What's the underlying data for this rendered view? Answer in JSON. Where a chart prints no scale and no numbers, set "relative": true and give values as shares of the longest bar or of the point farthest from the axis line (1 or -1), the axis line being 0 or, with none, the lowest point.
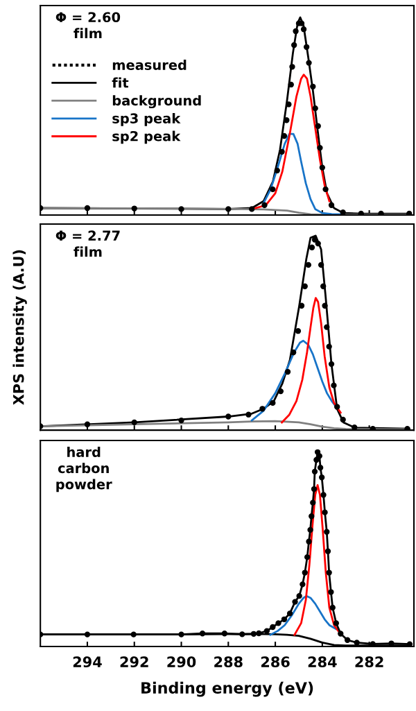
{
  "chart_data": [
    {
      "type": "line",
      "relative": true,
      "xlim": [
        296,
        280.1
      ],
      "xticks": [
        294,
        292,
        290,
        288,
        286,
        284,
        282
      ],
      "tick_labels": false,
      "legend": "top left",
      "annotations": [
        "Φ = 2.60\nfilm"
      ],
      "series": [
        {
          "name": "measured",
          "type": "scatter",
          "color": "#000000",
          "marker": "circle",
          "x": [
            296,
            294,
            292,
            290,
            288,
            287,
            286.46,
            286.11,
            285.92,
            285.72,
            285.62,
            285.52,
            285.43,
            285.33,
            285.28,
            285.2,
            285.13,
            285.0,
            284.88,
            284.79,
            284.67,
            284.57,
            284.4,
            284.3,
            284.18,
            284.1,
            284.0,
            283.86,
            283.61,
            283.12,
            282.35,
            281.5,
            280.3
          ],
          "values": [
            0.035,
            0.035,
            0.033,
            0.03,
            0.03,
            0.03,
            0.05,
            0.13,
            0.225,
            0.32,
            0.4,
            0.48,
            0.56,
            0.66,
            0.75,
            0.86,
            0.93,
            0.97,
            0.97,
            0.94,
            0.85,
            0.77,
            0.65,
            0.54,
            0.45,
            0.34,
            0.24,
            0.13,
            0.05,
            0.013,
            0.007,
            0.007,
            0.007
          ]
        },
        {
          "name": "fit",
          "color": "#000000",
          "marker": "none",
          "line_style": "solid",
          "x": [
            296,
            292,
            288,
            287,
            286.5,
            286.1,
            285.8,
            285.5,
            285.25,
            285.05,
            284.94,
            284.8,
            284.6,
            284.4,
            284.2,
            284.0,
            283.8,
            283.5,
            283.1,
            282.3,
            280.3
          ],
          "values": [
            0.035,
            0.033,
            0.03,
            0.035,
            0.07,
            0.17,
            0.33,
            0.58,
            0.82,
            0.97,
            1.0,
            0.96,
            0.8,
            0.63,
            0.43,
            0.24,
            0.11,
            0.035,
            0.01,
            0.006,
            0.006
          ]
        },
        {
          "name": "background",
          "color": "#808080",
          "marker": "none",
          "line_style": "solid",
          "x": [
            296,
            290,
            287.5,
            286.5,
            285.5,
            285.0,
            284.5,
            284.0,
            282,
            280.3
          ],
          "values": [
            0.035,
            0.033,
            0.03,
            0.028,
            0.022,
            0.012,
            0.004,
            0.002,
            0.002,
            0.002
          ]
        },
        {
          "name": "sp3 peak",
          "color": "#1874c8",
          "marker": "none",
          "line_style": "solid",
          "x": [
            286.5,
            286.2,
            285.9,
            285.6,
            285.4,
            285.23,
            285.05,
            284.9,
            284.7,
            284.5,
            284.3,
            284.0,
            283.6,
            283.2
          ],
          "values": [
            0.06,
            0.13,
            0.24,
            0.36,
            0.41,
            0.41,
            0.36,
            0.27,
            0.16,
            0.08,
            0.03,
            0.01,
            0.005,
            0.004
          ]
        },
        {
          "name": "sp2 peak",
          "color": "#ff0000",
          "marker": "none",
          "line_style": "solid",
          "x": [
            286.84,
            286.4,
            286.0,
            285.7,
            285.4,
            285.1,
            284.9,
            284.79,
            284.65,
            284.5,
            284.3,
            284.1,
            283.9,
            283.7
          ],
          "values": [
            0.035,
            0.05,
            0.11,
            0.22,
            0.4,
            0.6,
            0.69,
            0.71,
            0.69,
            0.6,
            0.44,
            0.28,
            0.15,
            0.07
          ]
        }
      ]
    },
    {
      "type": "line",
      "relative": true,
      "xlim": [
        296,
        280.1
      ],
      "xticks": [
        294,
        292,
        290,
        288,
        286,
        284,
        282
      ],
      "tick_labels": false,
      "ylabel": "XPS intensity (A.U)",
      "annotations": [
        "Φ = 2.77\nfilm"
      ],
      "series": [
        {
          "type": "scatter",
          "color": "#000000",
          "marker": "circle",
          "x": [
            296,
            294,
            292,
            290,
            288,
            287.14,
            286.55,
            286.11,
            285.77,
            285.47,
            285.23,
            285.03,
            284.88,
            284.74,
            284.59,
            284.44,
            284.32,
            284.18,
            284.05,
            283.96,
            283.89,
            283.81,
            283.71,
            283.61,
            283.51,
            283.37,
            283.12,
            282.63,
            281.85,
            280.38
          ],
          "values": [
            0.02,
            0.03,
            0.04,
            0.05,
            0.07,
            0.08,
            0.11,
            0.14,
            0.2,
            0.3,
            0.4,
            0.51,
            0.64,
            0.74,
            0.85,
            0.94,
            0.98,
            0.96,
            0.85,
            0.74,
            0.64,
            0.53,
            0.43,
            0.34,
            0.23,
            0.12,
            0.054,
            0.014,
            0.007,
            0.007
          ]
        },
        {
          "color": "#000000",
          "marker": "none",
          "line_style": "solid",
          "x": [
            296,
            292,
            288,
            287.0,
            286.5,
            286.06,
            285.7,
            285.38,
            284.98,
            284.68,
            284.5,
            284.28,
            284.05,
            283.86,
            283.61,
            283.37,
            283.1,
            282.6,
            280.3
          ],
          "values": [
            0.02,
            0.04,
            0.07,
            0.085,
            0.11,
            0.15,
            0.24,
            0.36,
            0.64,
            0.88,
            0.99,
            1.0,
            0.93,
            0.69,
            0.34,
            0.11,
            0.04,
            0.012,
            0.007
          ]
        },
        {
          "color": "#808080",
          "marker": "none",
          "line_style": "solid",
          "x": [
            296,
            292,
            288,
            287,
            286,
            285,
            284.5,
            284,
            283.5,
            283,
            281,
            280.3
          ],
          "values": [
            0.02,
            0.03,
            0.04,
            0.045,
            0.046,
            0.04,
            0.03,
            0.018,
            0.01,
            0.006,
            0.004,
            0.004
          ]
        },
        {
          "color": "#1874c8",
          "marker": "none",
          "line_style": "solid",
          "x": [
            287.0,
            286.5,
            286.0,
            285.6,
            285.2,
            284.95,
            284.81,
            284.6,
            284.4,
            284.2,
            284.0,
            283.8,
            283.6,
            283.41
          ],
          "values": [
            0.05,
            0.1,
            0.19,
            0.29,
            0.4,
            0.45,
            0.46,
            0.44,
            0.39,
            0.32,
            0.25,
            0.19,
            0.15,
            0.12
          ]
        },
        {
          "color": "#ff0000",
          "marker": "none",
          "line_style": "solid",
          "x": [
            285.72,
            285.4,
            285.1,
            284.85,
            284.65,
            284.5,
            284.38,
            284.28,
            284.18,
            284.05,
            283.9,
            283.7,
            283.5,
            283.22
          ],
          "values": [
            0.04,
            0.08,
            0.15,
            0.26,
            0.4,
            0.53,
            0.63,
            0.68,
            0.66,
            0.55,
            0.38,
            0.22,
            0.14,
            0.09
          ]
        }
      ]
    },
    {
      "type": "line",
      "relative": true,
      "xlim": [
        296,
        280.1
      ],
      "xticks": [
        294,
        292,
        290,
        288,
        286,
        284,
        282
      ],
      "tick_labels": "x",
      "xlabel": "Binding energy (eV)",
      "annotations": [
        "hard\ncarbon\npowder"
      ],
      "series": [
        {
          "color": "#000000",
          "marker": "circle",
          "line_style": "solid",
          "x": [
            296,
            294.0,
            292.03,
            290.0,
            289.1,
            288.16,
            287.41,
            286.92,
            286.7,
            286.36,
            286.11,
            285.87,
            285.62,
            285.38,
            285.16,
            284.98,
            284.84,
            284.74,
            284.64,
            284.57,
            284.51,
            284.46,
            284.4,
            284.35,
            284.32,
            284.25,
            284.2,
            284.12,
            284.08,
            284.02,
            283.95,
            283.89,
            283.81,
            283.76,
            283.71,
            283.63,
            283.56,
            283.41,
            283.22,
            282.93,
            282.53,
            281.85,
            281.06,
            280.28
          ],
          "values": [
            0.062,
            0.062,
            0.062,
            0.062,
            0.067,
            0.067,
            0.063,
            0.065,
            0.068,
            0.08,
            0.1,
            0.12,
            0.14,
            0.17,
            0.23,
            0.26,
            0.32,
            0.38,
            0.46,
            0.54,
            0.6,
            0.67,
            0.74,
            0.81,
            0.9,
            0.96,
            1.0,
            0.98,
            0.92,
            0.87,
            0.78,
            0.69,
            0.59,
            0.49,
            0.38,
            0.28,
            0.2,
            0.12,
            0.066,
            0.033,
            0.02,
            0.013,
            0.016,
            0.012
          ]
        },
        {
          "color": "#000000",
          "marker": "none",
          "line_style": "solid",
          "x": [
            296,
            290,
            287,
            286,
            285.5,
            285,
            284.5,
            284.0,
            283.5,
            283,
            281,
            280.3
          ],
          "values": [
            0.062,
            0.062,
            0.065,
            0.063,
            0.06,
            0.055,
            0.04,
            0.02,
            0.008,
            0.005,
            0.005,
            0.005
          ]
        },
        {
          "color": "#1874c8",
          "marker": "none",
          "line_style": "solid",
          "x": [
            286.21,
            285.9,
            285.6,
            285.3,
            285.0,
            284.8,
            284.67,
            284.5,
            284.3,
            284.1,
            283.9,
            283.7,
            283.41
          ],
          "values": [
            0.06,
            0.08,
            0.11,
            0.16,
            0.22,
            0.25,
            0.26,
            0.25,
            0.22,
            0.18,
            0.14,
            0.11,
            0.09
          ]
        },
        {
          "color": "#ff0000",
          "marker": "none",
          "line_style": "solid",
          "x": [
            285.18,
            284.9,
            284.7,
            284.55,
            284.42,
            284.3,
            284.2,
            284.1,
            283.98,
            283.85,
            283.7,
            283.5,
            283.32
          ],
          "values": [
            0.06,
            0.12,
            0.24,
            0.42,
            0.62,
            0.78,
            0.83,
            0.78,
            0.6,
            0.38,
            0.2,
            0.11,
            0.08
          ]
        }
      ]
    }
  ]
}
